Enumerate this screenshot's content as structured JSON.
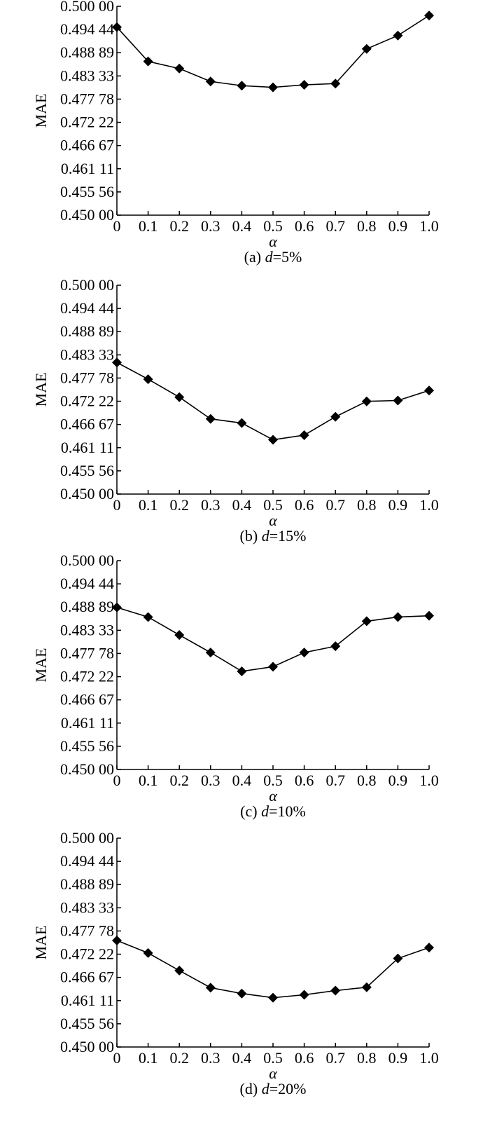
{
  "chart_data": [
    {
      "type": "line",
      "caption_prefix": "(a) ",
      "caption_var": "d",
      "caption_suffix": "=5%",
      "xlabel": "α",
      "ylabel": "MAE",
      "x": [
        0,
        0.1,
        0.2,
        0.3,
        0.4,
        0.5,
        0.6,
        0.7,
        0.8,
        0.9,
        1.0
      ],
      "x_tick_labels": [
        "0",
        "0.1",
        "0.2",
        "0.3",
        "0.4",
        "0.5",
        "0.6",
        "0.7",
        "0.8",
        "0.9",
        "1.0"
      ],
      "y_ticks": [
        0.45,
        0.45556,
        0.46111,
        0.46667,
        0.47222,
        0.47778,
        0.48333,
        0.48889,
        0.49444,
        0.5
      ],
      "y_tick_labels": [
        "0.450 00",
        "0.455 56",
        "0.461 11",
        "0.466 67",
        "0.472 22",
        "0.477 78",
        "0.483 33",
        "0.488 89",
        "0.494 44",
        "0.500 00"
      ],
      "ylim": [
        0.45,
        0.5
      ],
      "xlim": [
        0,
        1.0
      ],
      "marker": "diamond",
      "color": "#000000",
      "series": [
        {
          "values": [
            0.495,
            0.4868,
            0.4851,
            0.482,
            0.481,
            0.4806,
            0.4812,
            0.4815,
            0.4898,
            0.493,
            0.4978
          ]
        }
      ]
    },
    {
      "type": "line",
      "caption_prefix": "(b) ",
      "caption_var": "d",
      "caption_suffix": "=15%",
      "xlabel": "α",
      "ylabel": "MAE",
      "x": [
        0,
        0.1,
        0.2,
        0.3,
        0.4,
        0.5,
        0.6,
        0.7,
        0.8,
        0.9,
        1.0
      ],
      "x_tick_labels": [
        "0",
        "0.1",
        "0.2",
        "0.3",
        "0.4",
        "0.5",
        "0.6",
        "0.7",
        "0.8",
        "0.9",
        "1.0"
      ],
      "y_ticks": [
        0.45,
        0.45556,
        0.46111,
        0.46667,
        0.47222,
        0.47778,
        0.48333,
        0.48889,
        0.49444,
        0.5
      ],
      "y_tick_labels": [
        "0.450 00",
        "0.455 56",
        "0.461 11",
        "0.466 67",
        "0.472 22",
        "0.477 78",
        "0.483 33",
        "0.488 89",
        "0.494 44",
        "0.500 00"
      ],
      "ylim": [
        0.45,
        0.5
      ],
      "xlim": [
        0,
        1.0
      ],
      "marker": "diamond",
      "color": "#000000",
      "series": [
        {
          "values": [
            0.4815,
            0.4775,
            0.4732,
            0.468,
            0.467,
            0.463,
            0.4641,
            0.4685,
            0.4722,
            0.4724,
            0.4748
          ]
        }
      ]
    },
    {
      "type": "line",
      "caption_prefix": "(c) ",
      "caption_var": "d",
      "caption_suffix": "=10%",
      "xlabel": "α",
      "ylabel": "MAE",
      "x": [
        0,
        0.1,
        0.2,
        0.3,
        0.4,
        0.5,
        0.6,
        0.7,
        0.8,
        0.9,
        1.0
      ],
      "x_tick_labels": [
        "0",
        "0.1",
        "0.2",
        "0.3",
        "0.4",
        "0.5",
        "0.6",
        "0.7",
        "0.8",
        "0.9",
        "1.0"
      ],
      "y_ticks": [
        0.45,
        0.45556,
        0.46111,
        0.46667,
        0.47222,
        0.47778,
        0.48333,
        0.48889,
        0.49444,
        0.5
      ],
      "y_tick_labels": [
        "0.450 00",
        "0.455 56",
        "0.461 11",
        "0.466 67",
        "0.472 22",
        "0.477 78",
        "0.483 33",
        "0.488 89",
        "0.494 44",
        "0.500 00"
      ],
      "ylim": [
        0.45,
        0.5
      ],
      "xlim": [
        0,
        1.0
      ],
      "marker": "diamond",
      "color": "#000000",
      "series": [
        {
          "values": [
            0.4888,
            0.4865,
            0.4822,
            0.478,
            0.4735,
            0.4746,
            0.478,
            0.4795,
            0.4855,
            0.4865,
            0.4868
          ]
        }
      ]
    },
    {
      "type": "line",
      "caption_prefix": "(d) ",
      "caption_var": "d",
      "caption_suffix": "=20%",
      "xlabel": "α",
      "ylabel": "MAE",
      "x": [
        0,
        0.1,
        0.2,
        0.3,
        0.4,
        0.5,
        0.6,
        0.7,
        0.8,
        0.9,
        1.0
      ],
      "x_tick_labels": [
        "0",
        "0.1",
        "0.2",
        "0.3",
        "0.4",
        "0.5",
        "0.6",
        "0.7",
        "0.8",
        "0.9",
        "1.0"
      ],
      "y_ticks": [
        0.45,
        0.45556,
        0.46111,
        0.46667,
        0.47222,
        0.47778,
        0.48333,
        0.48889,
        0.49444,
        0.5
      ],
      "y_tick_labels": [
        "0.450 00",
        "0.455 56",
        "0.461 11",
        "0.466 67",
        "0.472 22",
        "0.477 78",
        "0.483 33",
        "0.488 89",
        "0.494 44",
        "0.500 00"
      ],
      "ylim": [
        0.45,
        0.5
      ],
      "xlim": [
        0,
        1.0
      ],
      "marker": "diamond",
      "color": "#000000",
      "series": [
        {
          "values": [
            0.4755,
            0.4725,
            0.4683,
            0.4642,
            0.4628,
            0.4618,
            0.4625,
            0.4635,
            0.4643,
            0.4712,
            0.4738
          ]
        }
      ]
    }
  ]
}
